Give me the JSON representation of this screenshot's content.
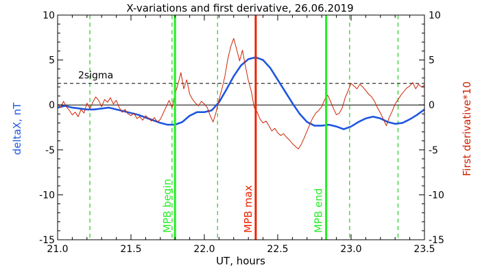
{
  "chart_data": {
    "type": "line",
    "title": "X-variations and first derivative, 26.06.2019",
    "xlabel": "UT, hours",
    "ylabel_left": "deltaX, nT",
    "ylabel_right": "First derivative*10",
    "xlim": [
      21.0,
      23.5
    ],
    "ylim": [
      -15,
      10
    ],
    "x_ticks": [
      "21.0",
      "21.5",
      "22.0",
      "22.5",
      "23.0",
      "23.5"
    ],
    "y_ticks_left": [
      "-15",
      "-10",
      "-5",
      "0",
      "5",
      "10"
    ],
    "y_ticks_right": [
      "-15",
      "-10",
      "-5",
      "0",
      "5",
      "10"
    ],
    "grid": false,
    "colors": {
      "deltaX": "#1e56e0",
      "derivative": "#cc2200",
      "mpb": "#22ee22",
      "max": "#ee2200",
      "dashed": "#22cc22"
    },
    "threshold": {
      "label": "2sigma",
      "value": 2.4
    },
    "dashed_vlines": [
      21.22,
      21.78,
      22.09,
      22.99,
      23.32
    ],
    "vertical_markers": [
      {
        "label": "MPB begin",
        "x": 21.8,
        "color": "#22ee22"
      },
      {
        "label": "MPB max",
        "x": 22.35,
        "color": "#ee2200"
      },
      {
        "label": "MPB end",
        "x": 22.83,
        "color": "#22ee22"
      }
    ],
    "series": [
      {
        "name": "deltaX",
        "color": "#1e56e0",
        "x": [
          21.0,
          21.05,
          21.1,
          21.15,
          21.2,
          21.25,
          21.3,
          21.35,
          21.4,
          21.45,
          21.5,
          21.55,
          21.6,
          21.65,
          21.7,
          21.75,
          21.8,
          21.85,
          21.9,
          21.95,
          22.0,
          22.05,
          22.1,
          22.15,
          22.2,
          22.25,
          22.3,
          22.35,
          22.4,
          22.45,
          22.5,
          22.55,
          22.6,
          22.65,
          22.7,
          22.75,
          22.8,
          22.85,
          22.9,
          22.95,
          23.0,
          23.05,
          23.1,
          23.15,
          23.2,
          23.25,
          23.3,
          23.35,
          23.4,
          23.45,
          23.5
        ],
        "y": [
          -0.3,
          -0.1,
          -0.3,
          -0.4,
          -0.5,
          -0.5,
          -0.4,
          -0.3,
          -0.5,
          -0.7,
          -0.9,
          -1.1,
          -1.4,
          -1.7,
          -2.0,
          -2.2,
          -2.2,
          -1.9,
          -1.2,
          -0.8,
          -0.8,
          -0.6,
          0.3,
          1.7,
          3.2,
          4.4,
          5.1,
          5.3,
          5.0,
          4.1,
          2.8,
          1.5,
          0.2,
          -1.0,
          -1.9,
          -2.3,
          -2.3,
          -2.2,
          -2.4,
          -2.7,
          -2.4,
          -1.9,
          -1.5,
          -1.3,
          -1.5,
          -1.9,
          -2.1,
          -2.0,
          -1.6,
          -1.1,
          -0.5
        ]
      },
      {
        "name": "First derivative*10",
        "color": "#cc2200",
        "x": [
          21.0,
          21.02,
          21.04,
          21.06,
          21.08,
          21.1,
          21.12,
          21.14,
          21.16,
          21.18,
          21.2,
          21.22,
          21.24,
          21.26,
          21.28,
          21.3,
          21.32,
          21.34,
          21.36,
          21.38,
          21.4,
          21.42,
          21.44,
          21.46,
          21.48,
          21.5,
          21.52,
          21.54,
          21.56,
          21.58,
          21.6,
          21.62,
          21.64,
          21.66,
          21.68,
          21.7,
          21.72,
          21.74,
          21.76,
          21.78,
          21.8,
          21.82,
          21.84,
          21.86,
          21.88,
          21.9,
          21.92,
          21.94,
          21.96,
          21.98,
          22.0,
          22.02,
          22.04,
          22.06,
          22.08,
          22.1,
          22.12,
          22.14,
          22.16,
          22.18,
          22.2,
          22.22,
          22.24,
          22.26,
          22.28,
          22.3,
          22.32,
          22.34,
          22.36,
          22.38,
          22.4,
          22.42,
          22.44,
          22.46,
          22.48,
          22.5,
          22.52,
          22.54,
          22.56,
          22.58,
          22.6,
          22.62,
          22.64,
          22.66,
          22.68,
          22.7,
          22.72,
          22.74,
          22.76,
          22.78,
          22.8,
          22.82,
          22.84,
          22.86,
          22.88,
          22.9,
          22.92,
          22.94,
          22.96,
          22.98,
          23.0,
          23.02,
          23.04,
          23.06,
          23.08,
          23.1,
          23.12,
          23.14,
          23.16,
          23.18,
          23.2,
          23.22,
          23.24,
          23.26,
          23.28,
          23.3,
          23.32,
          23.34,
          23.36,
          23.38,
          23.4,
          23.42,
          23.44,
          23.46,
          23.48,
          23.5
        ],
        "y": [
          0.1,
          -0.3,
          0.4,
          -0.2,
          -0.6,
          -1.1,
          -0.8,
          -1.3,
          -0.5,
          -0.9,
          0.2,
          -0.4,
          0.3,
          0.9,
          0.5,
          -0.2,
          0.6,
          0.3,
          0.8,
          0.1,
          0.5,
          -0.3,
          -0.8,
          -0.5,
          -1.0,
          -1.2,
          -0.9,
          -1.5,
          -1.3,
          -1.7,
          -1.2,
          -1.5,
          -1.8,
          -1.4,
          -1.9,
          -1.6,
          -0.9,
          -0.2,
          0.5,
          -0.3,
          1.2,
          2.3,
          3.6,
          1.8,
          2.8,
          1.2,
          0.6,
          0.2,
          -0.1,
          0.4,
          0.1,
          -0.3,
          -1.2,
          -1.9,
          -0.8,
          0.6,
          1.8,
          3.2,
          5.1,
          6.5,
          7.4,
          6.2,
          4.9,
          6.1,
          4.3,
          2.7,
          1.5,
          -0.3,
          -0.8,
          -1.6,
          -2.0,
          -1.8,
          -2.3,
          -2.9,
          -2.6,
          -3.1,
          -3.4,
          -3.2,
          -3.6,
          -3.9,
          -4.3,
          -4.6,
          -4.9,
          -4.4,
          -3.7,
          -2.9,
          -2.1,
          -1.4,
          -0.9,
          -0.6,
          -0.2,
          0.6,
          1.1,
          0.4,
          -0.4,
          -1.1,
          -0.9,
          -0.3,
          0.8,
          1.6,
          2.4,
          2.1,
          1.8,
          2.3,
          2.0,
          1.6,
          1.2,
          0.9,
          0.4,
          -0.3,
          -0.9,
          -1.6,
          -2.3,
          -1.4,
          -0.7,
          0.1,
          0.6,
          1.1,
          1.5,
          1.9,
          2.1,
          2.5,
          1.8,
          2.3,
          2.0,
          2.2
        ]
      }
    ]
  }
}
